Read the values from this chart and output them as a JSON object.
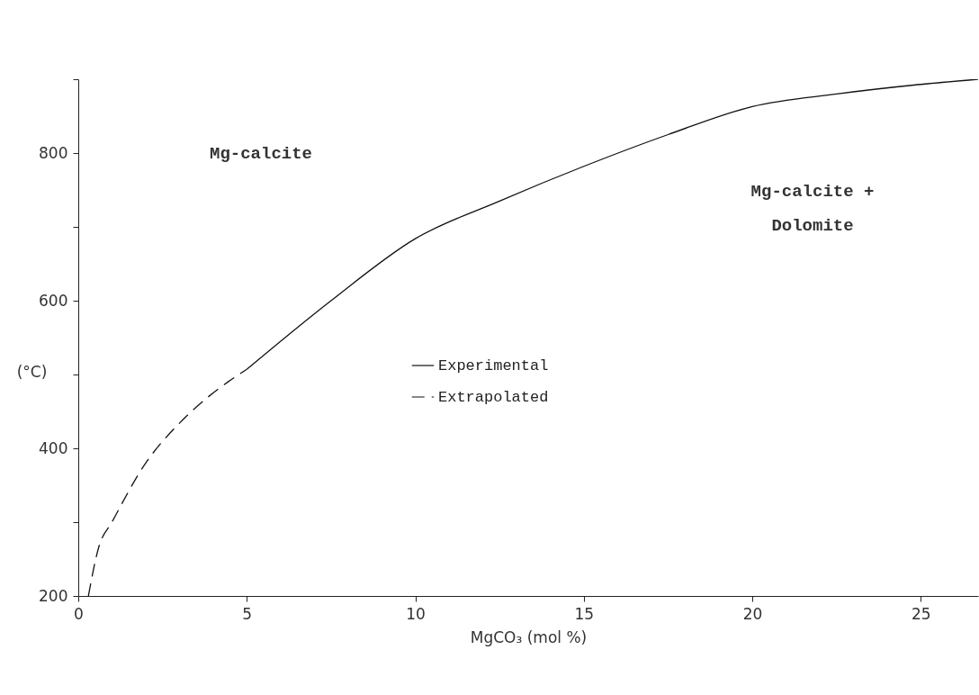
{
  "chart_data": {
    "type": "line",
    "xlabel": "MgCO₃    (mol %)",
    "ylabel": "(°C)",
    "xlim": [
      0,
      26.7
    ],
    "ylim": [
      200,
      900
    ],
    "xticks": [
      0,
      5,
      10,
      15,
      20,
      25
    ],
    "yticks": [
      200,
      {
        "value": 300,
        "label": null
      },
      400,
      {
        "value": 500,
        "label": null
      },
      600,
      {
        "value": 700,
        "label": null
      },
      800,
      {
        "value": 900,
        "label": null
      }
    ],
    "series": [
      {
        "name": "Experimental",
        "color": "#111111",
        "line_style": "solid",
        "x": [
          5,
          7.5,
          10,
          12.5,
          15,
          17.5,
          20,
          22.5,
          25,
          26.7
        ],
        "values": [
          507,
          600,
          684,
          735,
          782,
          825,
          863,
          880,
          893,
          900
        ]
      },
      {
        "name": "Extrapolated",
        "color": "#111111",
        "line_style": "dashed",
        "x": [
          0.3,
          0.6,
          1,
          2,
          3,
          4,
          5
        ],
        "values": [
          200,
          265,
          300,
          380,
          434,
          475,
          507
        ]
      }
    ],
    "legend": "center",
    "grid": false,
    "annotations": [
      "Mg-calcite",
      "Mg-calcite +",
      "Dolomite"
    ]
  }
}
